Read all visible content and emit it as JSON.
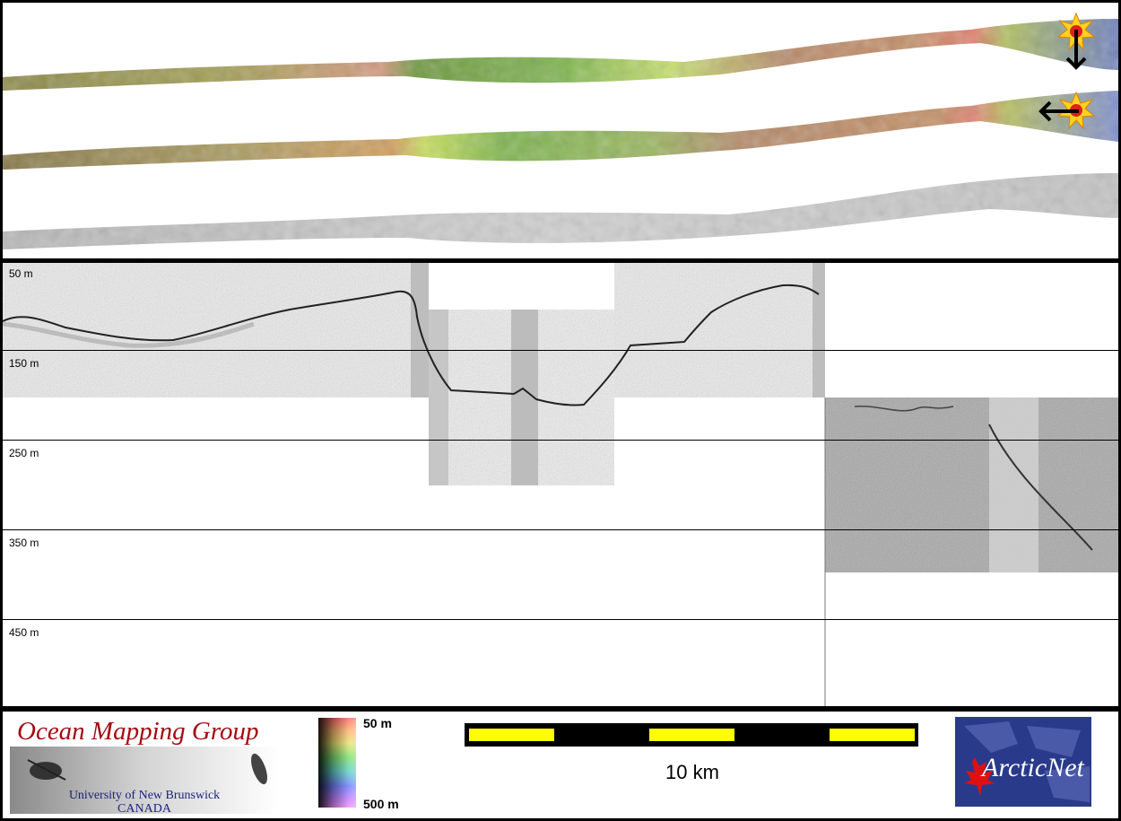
{
  "profile": {
    "depth_labels": [
      "50 m",
      "150 m",
      "250 m",
      "350 m",
      "450 m"
    ]
  },
  "footer": {
    "omg_title": "Ocean Mapping Group",
    "omg_university": "University of New Brunswick",
    "omg_country": "CANADA",
    "colorbar_top": "50 m",
    "colorbar_bottom": "500 m",
    "scale_label": "10 km",
    "arcticnet_label": "ArcticNet"
  },
  "colors": {
    "logo_red": "#a40a12",
    "logo_navy": "#1a237e",
    "scalebar_yellow": "#ffff00"
  }
}
